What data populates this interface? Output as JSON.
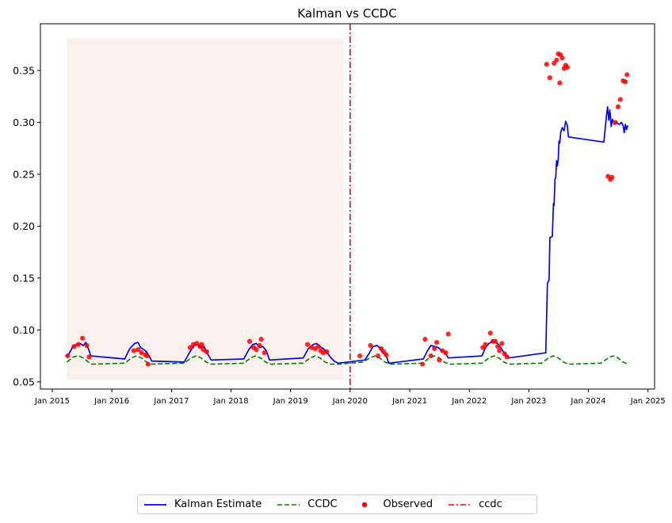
{
  "chart_data": {
    "type": "line",
    "title": "Kalman vs CCDC",
    "xlabel": "",
    "ylabel": "",
    "x_ticks": [
      "Jan 2015",
      "Jan 2016",
      "Jan 2017",
      "Jan 2018",
      "Jan 2019",
      "Jan 2020",
      "Jan 2021",
      "Jan 2022",
      "Jan 2023",
      "Jan 2024",
      "Jan 2025"
    ],
    "y_ticks": [
      "0.05",
      "0.10",
      "0.15",
      "0.20",
      "0.25",
      "0.30",
      "0.35"
    ],
    "xlim": [
      "2014-10-20",
      "2025-02-10"
    ],
    "ylim": [
      0.043,
      0.395
    ],
    "shaded_region": {
      "x_start": "2015-04-01",
      "x_end": "2019-11-20",
      "y_range": [
        0.052,
        0.381
      ],
      "color": "#f5ddd6"
    },
    "vertical_line": {
      "name": "ccdc",
      "x": "2020-01-01",
      "color": "#ff0000",
      "style": "dashdot"
    },
    "series": [
      {
        "name": "Kalman Estimate",
        "style": "line",
        "color": "#0000ff",
        "points": [
          [
            "2015-04-01",
            0.074
          ],
          [
            "2015-04-20",
            0.079
          ],
          [
            "2015-05-10",
            0.085
          ],
          [
            "2015-06-01",
            0.086
          ],
          [
            "2015-06-20",
            0.087
          ],
          [
            "2015-07-10",
            0.085
          ],
          [
            "2015-07-25",
            0.088
          ],
          [
            "2015-08-10",
            0.082
          ],
          [
            "2015-08-25",
            0.075
          ],
          [
            "2016-03-20",
            0.072
          ],
          [
            "2016-04-20",
            0.082
          ],
          [
            "2016-05-20",
            0.087
          ],
          [
            "2016-06-10",
            0.088
          ],
          [
            "2016-06-25",
            0.083
          ],
          [
            "2016-07-15",
            0.081
          ],
          [
            "2016-08-01",
            0.079
          ],
          [
            "2016-08-20",
            0.074
          ],
          [
            "2016-09-01",
            0.07
          ],
          [
            "2017-03-20",
            0.069
          ],
          [
            "2017-04-20",
            0.078
          ],
          [
            "2017-05-20",
            0.085
          ],
          [
            "2017-06-10",
            0.086
          ],
          [
            "2017-07-01",
            0.083
          ],
          [
            "2017-07-20",
            0.084
          ],
          [
            "2017-08-10",
            0.077
          ],
          [
            "2017-09-01",
            0.071
          ],
          [
            "2018-03-20",
            0.072
          ],
          [
            "2018-04-20",
            0.081
          ],
          [
            "2018-05-15",
            0.086
          ],
          [
            "2018-06-05",
            0.087
          ],
          [
            "2018-06-25",
            0.083
          ],
          [
            "2018-07-15",
            0.084
          ],
          [
            "2018-08-05",
            0.08
          ],
          [
            "2018-08-25",
            0.071
          ],
          [
            "2019-03-20",
            0.073
          ],
          [
            "2019-04-20",
            0.082
          ],
          [
            "2019-05-20",
            0.086
          ],
          [
            "2019-06-10",
            0.087
          ],
          [
            "2019-07-01",
            0.084
          ],
          [
            "2019-07-20",
            0.082
          ],
          [
            "2019-08-10",
            0.079
          ],
          [
            "2019-09-01",
            0.074
          ],
          [
            "2019-09-25",
            0.07
          ],
          [
            "2019-10-20",
            0.068
          ],
          [
            "2020-04-01",
            0.071
          ],
          [
            "2020-04-25",
            0.077
          ],
          [
            "2020-05-20",
            0.084
          ],
          [
            "2020-06-15",
            0.085
          ],
          [
            "2020-07-05",
            0.082
          ],
          [
            "2020-07-20",
            0.078
          ],
          [
            "2020-08-10",
            0.075
          ],
          [
            "2020-08-25",
            0.068
          ],
          [
            "2021-03-25",
            0.072
          ],
          [
            "2021-04-20",
            0.08
          ],
          [
            "2021-05-10",
            0.085
          ],
          [
            "2021-06-05",
            0.084
          ],
          [
            "2021-06-25",
            0.083
          ],
          [
            "2021-07-15",
            0.08
          ],
          [
            "2021-08-05",
            0.078
          ],
          [
            "2021-08-25",
            0.073
          ],
          [
            "2022-03-20",
            0.075
          ],
          [
            "2022-04-10",
            0.083
          ],
          [
            "2022-05-01",
            0.087
          ],
          [
            "2022-05-25",
            0.089
          ],
          [
            "2022-06-15",
            0.088
          ],
          [
            "2022-07-05",
            0.085
          ],
          [
            "2022-07-25",
            0.08
          ],
          [
            "2022-08-15",
            0.076
          ],
          [
            "2022-09-01",
            0.073
          ],
          [
            "2023-04-15",
            0.078
          ],
          [
            "2023-04-25",
            0.145
          ],
          [
            "2023-05-05",
            0.148
          ],
          [
            "2023-05-10",
            0.189
          ],
          [
            "2023-05-25",
            0.19
          ],
          [
            "2023-06-01",
            0.222
          ],
          [
            "2023-06-05",
            0.22
          ],
          [
            "2023-06-10",
            0.245
          ],
          [
            "2023-06-15",
            0.247
          ],
          [
            "2023-06-20",
            0.263
          ],
          [
            "2023-06-25",
            0.258
          ],
          [
            "2023-06-30",
            0.264
          ],
          [
            "2023-07-05",
            0.282
          ],
          [
            "2023-07-10",
            0.28
          ],
          [
            "2023-07-15",
            0.29
          ],
          [
            "2023-07-25",
            0.295
          ],
          [
            "2023-08-05",
            0.292
          ],
          [
            "2023-08-15",
            0.301
          ],
          [
            "2023-08-25",
            0.297
          ],
          [
            "2023-09-01",
            0.286
          ],
          [
            "2024-04-05",
            0.281
          ],
          [
            "2024-04-20",
            0.305
          ],
          [
            "2024-04-28",
            0.315
          ],
          [
            "2024-05-05",
            0.302
          ],
          [
            "2024-05-12",
            0.312
          ],
          [
            "2024-05-20",
            0.296
          ],
          [
            "2024-05-28",
            0.303
          ],
          [
            "2024-06-08",
            0.298
          ],
          [
            "2024-06-18",
            0.3
          ],
          [
            "2024-06-28",
            0.299
          ],
          [
            "2024-07-10",
            0.298
          ],
          [
            "2024-07-22",
            0.3
          ],
          [
            "2024-08-01",
            0.297
          ],
          [
            "2024-08-08",
            0.29
          ],
          [
            "2024-08-15",
            0.298
          ],
          [
            "2024-08-22",
            0.293
          ],
          [
            "2024-08-30",
            0.297
          ]
        ]
      },
      {
        "name": "CCDC",
        "style": "dashed",
        "color": "#008000",
        "points": [
          [
            "2015-04-01",
            0.069
          ],
          [
            "2015-05-10",
            0.074
          ],
          [
            "2015-06-10",
            0.075
          ],
          [
            "2015-07-10",
            0.073
          ],
          [
            "2015-08-10",
            0.069
          ],
          [
            "2015-09-01",
            0.067
          ],
          [
            "2016-03-20",
            0.068
          ],
          [
            "2016-05-01",
            0.073
          ],
          [
            "2016-06-01",
            0.075
          ],
          [
            "2016-07-01",
            0.073
          ],
          [
            "2016-08-01",
            0.069
          ],
          [
            "2016-09-01",
            0.067
          ],
          [
            "2017-03-20",
            0.068
          ],
          [
            "2017-05-01",
            0.073
          ],
          [
            "2017-06-01",
            0.075
          ],
          [
            "2017-07-01",
            0.073
          ],
          [
            "2017-08-01",
            0.069
          ],
          [
            "2017-09-01",
            0.067
          ],
          [
            "2018-03-20",
            0.068
          ],
          [
            "2018-05-01",
            0.073
          ],
          [
            "2018-06-01",
            0.075
          ],
          [
            "2018-07-01",
            0.073
          ],
          [
            "2018-08-01",
            0.069
          ],
          [
            "2018-09-01",
            0.067
          ],
          [
            "2019-03-20",
            0.068
          ],
          [
            "2019-05-01",
            0.073
          ],
          [
            "2019-06-01",
            0.075
          ],
          [
            "2019-07-01",
            0.073
          ],
          [
            "2019-08-01",
            0.069
          ],
          [
            "2019-09-01",
            0.067
          ],
          [
            "2019-10-20",
            0.067
          ],
          [
            "2020-03-20",
            0.069
          ],
          [
            "2020-05-01",
            0.073
          ],
          [
            "2020-06-01",
            0.075
          ],
          [
            "2020-07-01",
            0.073
          ],
          [
            "2020-08-01",
            0.069
          ],
          [
            "2020-09-01",
            0.067
          ],
          [
            "2021-03-20",
            0.068
          ],
          [
            "2021-05-01",
            0.073
          ],
          [
            "2021-06-01",
            0.075
          ],
          [
            "2021-07-01",
            0.073
          ],
          [
            "2021-08-01",
            0.069
          ],
          [
            "2021-09-01",
            0.067
          ],
          [
            "2022-03-20",
            0.068
          ],
          [
            "2022-05-01",
            0.073
          ],
          [
            "2022-06-01",
            0.075
          ],
          [
            "2022-07-01",
            0.073
          ],
          [
            "2022-08-01",
            0.069
          ],
          [
            "2022-09-01",
            0.067
          ],
          [
            "2023-03-20",
            0.068
          ],
          [
            "2023-05-01",
            0.073
          ],
          [
            "2023-06-01",
            0.075
          ],
          [
            "2023-07-01",
            0.073
          ],
          [
            "2023-08-01",
            0.069
          ],
          [
            "2023-09-01",
            0.067
          ],
          [
            "2024-03-20",
            0.068
          ],
          [
            "2024-05-01",
            0.073
          ],
          [
            "2024-06-01",
            0.075
          ],
          [
            "2024-07-01",
            0.073
          ],
          [
            "2024-08-01",
            0.069
          ],
          [
            "2024-09-01",
            0.067
          ]
        ]
      },
      {
        "name": "Observed",
        "style": "scatter",
        "color": "#ff0000",
        "points": [
          [
            "2015-04-05",
            0.075
          ],
          [
            "2015-05-15",
            0.084
          ],
          [
            "2015-06-10",
            0.086
          ],
          [
            "2015-07-05",
            0.092
          ],
          [
            "2015-08-01",
            0.085
          ],
          [
            "2015-08-15",
            0.074
          ],
          [
            "2016-05-15",
            0.08
          ],
          [
            "2016-06-10",
            0.081
          ],
          [
            "2016-07-01",
            0.078
          ],
          [
            "2016-07-25",
            0.076
          ],
          [
            "2016-08-05",
            0.075
          ],
          [
            "2016-08-10",
            0.067
          ],
          [
            "2017-04-25",
            0.083
          ],
          [
            "2017-05-15",
            0.086
          ],
          [
            "2017-06-05",
            0.087
          ],
          [
            "2017-06-25",
            0.084
          ],
          [
            "2017-07-05",
            0.086
          ],
          [
            "2017-07-15",
            0.081
          ],
          [
            "2017-08-05",
            0.079
          ],
          [
            "2018-04-25",
            0.089
          ],
          [
            "2018-05-20",
            0.083
          ],
          [
            "2018-06-05",
            0.081
          ],
          [
            "2018-06-25",
            0.085
          ],
          [
            "2018-07-05",
            0.091
          ],
          [
            "2018-07-25",
            0.078
          ],
          [
            "2019-04-15",
            0.086
          ],
          [
            "2019-05-10",
            0.083
          ],
          [
            "2019-06-01",
            0.082
          ],
          [
            "2019-06-20",
            0.084
          ],
          [
            "2019-07-05",
            0.08
          ],
          [
            "2019-07-20",
            0.078
          ],
          [
            "2019-08-10",
            0.079
          ],
          [
            "2020-03-01",
            0.075
          ],
          [
            "2020-05-05",
            0.085
          ],
          [
            "2020-06-20",
            0.075
          ],
          [
            "2020-07-10",
            0.082
          ],
          [
            "2020-07-25",
            0.079
          ],
          [
            "2020-08-10",
            0.076
          ],
          [
            "2021-03-20",
            0.067
          ],
          [
            "2021-04-05",
            0.091
          ],
          [
            "2021-05-10",
            0.075
          ],
          [
            "2021-06-15",
            0.088
          ],
          [
            "2021-06-01",
            0.082
          ],
          [
            "2021-07-01",
            0.071
          ],
          [
            "2021-07-20",
            0.08
          ],
          [
            "2021-08-10",
            0.078
          ],
          [
            "2021-08-25",
            0.096
          ],
          [
            "2022-03-25",
            0.083
          ],
          [
            "2022-04-10",
            0.086
          ],
          [
            "2022-05-10",
            0.097
          ],
          [
            "2022-05-25",
            0.089
          ],
          [
            "2022-06-10",
            0.089
          ],
          [
            "2022-06-25",
            0.084
          ],
          [
            "2022-07-05",
            0.08
          ],
          [
            "2022-07-20",
            0.087
          ],
          [
            "2022-08-05",
            0.077
          ],
          [
            "2022-08-20",
            0.074
          ],
          [
            "2023-04-20",
            0.356
          ],
          [
            "2023-05-10",
            0.343
          ],
          [
            "2023-06-05",
            0.357
          ],
          [
            "2023-06-20",
            0.36
          ],
          [
            "2023-07-01",
            0.366
          ],
          [
            "2023-07-10",
            0.338
          ],
          [
            "2023-07-15",
            0.365
          ],
          [
            "2023-07-25",
            0.362
          ],
          [
            "2023-08-05",
            0.352
          ],
          [
            "2023-08-15",
            0.355
          ],
          [
            "2023-08-25",
            0.353
          ],
          [
            "2024-05-01",
            0.248
          ],
          [
            "2024-05-15",
            0.245
          ],
          [
            "2024-05-25",
            0.247
          ],
          [
            "2024-06-15",
            0.3
          ],
          [
            "2024-07-01",
            0.315
          ],
          [
            "2024-07-15",
            0.322
          ],
          [
            "2024-08-01",
            0.34
          ],
          [
            "2024-08-15",
            0.339
          ],
          [
            "2024-08-25",
            0.346
          ]
        ]
      }
    ],
    "legend": {
      "placement": "bottom-center",
      "entries": [
        {
          "label": "Kalman Estimate",
          "color": "#0000ff",
          "style": "line"
        },
        {
          "label": "CCDC",
          "color": "#008000",
          "style": "dashed"
        },
        {
          "label": "Observed",
          "color": "#ff0000",
          "style": "dot"
        },
        {
          "label": "ccdc",
          "color": "#ff0000",
          "style": "dashdot"
        }
      ]
    }
  }
}
